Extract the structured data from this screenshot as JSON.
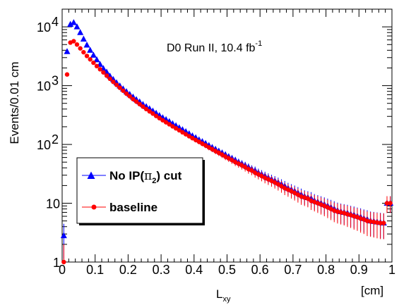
{
  "chart_data": {
    "type": "scatter",
    "title": "",
    "annotation": {
      "main": "D0 Run II, 10.4 fb",
      "sup": "-1"
    },
    "xlabel": {
      "main": "L",
      "sub": "xy"
    },
    "xunit": "[cm]",
    "ylabel": "Events/0.01 cm",
    "xlim": [
      0,
      1
    ],
    "ylim": [
      1,
      20000
    ],
    "yscale": "log",
    "grid": false,
    "legend_position": "left-middle",
    "x_ticks": [
      "0",
      "0.1",
      "0.2",
      "0.3",
      "0.4",
      "0.5",
      "0.6",
      "0.7",
      "0.8",
      "0.9",
      "1"
    ],
    "y_ticks": [
      {
        "value": 1,
        "main": "1",
        "sup": ""
      },
      {
        "value": 10,
        "main": "10",
        "sup": ""
      },
      {
        "value": 100,
        "main": "10",
        "sup": "2"
      },
      {
        "value": 1000,
        "main": "10",
        "sup": "3"
      },
      {
        "value": 10000,
        "main": "10",
        "sup": "4"
      }
    ],
    "series": [
      {
        "name": {
          "pre": "No IP(",
          "sym": "π",
          "sub": "2",
          "post": ") cut"
        },
        "color": "#0000ff",
        "marker": "triangle",
        "x": [
          0.005,
          0.015,
          0.025,
          0.035,
          0.045,
          0.055,
          0.065,
          0.075,
          0.085,
          0.095,
          0.105,
          0.115,
          0.125,
          0.135,
          0.145,
          0.155,
          0.165,
          0.175,
          0.185,
          0.195,
          0.205,
          0.215,
          0.225,
          0.235,
          0.245,
          0.255,
          0.265,
          0.275,
          0.285,
          0.295,
          0.305,
          0.315,
          0.325,
          0.335,
          0.345,
          0.355,
          0.365,
          0.375,
          0.385,
          0.395,
          0.405,
          0.415,
          0.425,
          0.435,
          0.445,
          0.455,
          0.465,
          0.475,
          0.485,
          0.495,
          0.505,
          0.515,
          0.525,
          0.535,
          0.545,
          0.555,
          0.565,
          0.575,
          0.585,
          0.595,
          0.605,
          0.615,
          0.625,
          0.635,
          0.645,
          0.655,
          0.665,
          0.675,
          0.685,
          0.695,
          0.705,
          0.715,
          0.725,
          0.735,
          0.745,
          0.755,
          0.765,
          0.775,
          0.785,
          0.795,
          0.805,
          0.815,
          0.825,
          0.835,
          0.845,
          0.855,
          0.865,
          0.875,
          0.885,
          0.895,
          0.905,
          0.915,
          0.925,
          0.935,
          0.945,
          0.955,
          0.965,
          0.975,
          0.985,
          0.995
        ],
        "y": [
          2.8,
          3800,
          11000,
          11800,
          10000,
          8000,
          6200,
          4900,
          4000,
          3300,
          2750,
          2300,
          1950,
          1700,
          1450,
          1270,
          1120,
          990,
          880,
          790,
          710,
          640,
          580,
          530,
          480,
          440,
          405,
          370,
          340,
          310,
          285,
          265,
          245,
          225,
          208,
          192,
          178,
          165,
          152,
          140,
          130,
          120,
          112,
          104,
          96,
          89,
          83,
          77,
          72,
          67,
          62,
          58,
          54,
          50,
          47,
          44,
          41,
          38,
          36,
          33,
          31,
          29,
          27,
          25.5,
          24,
          22.5,
          21,
          19.5,
          18,
          17,
          16,
          15,
          14,
          13,
          12.5,
          12,
          11,
          10.5,
          10,
          9.5,
          9,
          8.5,
          8,
          7.5,
          7.2,
          7,
          6.8,
          6.5,
          6.3,
          6,
          5.8,
          5.5,
          5.3,
          5,
          4.9,
          4.8,
          4.7,
          4.6,
          10,
          10
        ]
      },
      {
        "name": {
          "pre": "baseline",
          "sym": "",
          "sub": "",
          "post": ""
        },
        "color": "#ff0000",
        "marker": "circle",
        "x": [
          0.005,
          0.015,
          0.025,
          0.035,
          0.045,
          0.055,
          0.065,
          0.075,
          0.085,
          0.095,
          0.105,
          0.115,
          0.125,
          0.135,
          0.145,
          0.155,
          0.165,
          0.175,
          0.185,
          0.195,
          0.205,
          0.215,
          0.225,
          0.235,
          0.245,
          0.255,
          0.265,
          0.275,
          0.285,
          0.295,
          0.305,
          0.315,
          0.325,
          0.335,
          0.345,
          0.355,
          0.365,
          0.375,
          0.385,
          0.395,
          0.405,
          0.415,
          0.425,
          0.435,
          0.445,
          0.455,
          0.465,
          0.475,
          0.485,
          0.495,
          0.505,
          0.515,
          0.525,
          0.535,
          0.545,
          0.555,
          0.565,
          0.575,
          0.585,
          0.595,
          0.605,
          0.615,
          0.625,
          0.635,
          0.645,
          0.655,
          0.665,
          0.675,
          0.685,
          0.695,
          0.705,
          0.715,
          0.725,
          0.735,
          0.745,
          0.755,
          0.765,
          0.775,
          0.785,
          0.795,
          0.805,
          0.815,
          0.825,
          0.835,
          0.845,
          0.855,
          0.865,
          0.875,
          0.885,
          0.895,
          0.905,
          0.915,
          0.925,
          0.935,
          0.945,
          0.955,
          0.965,
          0.975,
          0.985,
          0.995
        ],
        "y": [
          1,
          1550,
          5400,
          5700,
          5000,
          4300,
          3700,
          3200,
          2800,
          2450,
          2150,
          1900,
          1680,
          1480,
          1310,
          1160,
          1030,
          920,
          820,
          730,
          660,
          590,
          535,
          485,
          440,
          400,
          365,
          335,
          305,
          280,
          258,
          238,
          220,
          203,
          188,
          174,
          161,
          149,
          138,
          128,
          119,
          111,
          103,
          96,
          89,
          83,
          77,
          72,
          67,
          62,
          58,
          54,
          50,
          47,
          44,
          41,
          38,
          36,
          33,
          31,
          29,
          27,
          25.5,
          24,
          22.5,
          21,
          19.5,
          18,
          17,
          16,
          15,
          14,
          13,
          12.5,
          12,
          11,
          10.5,
          10,
          9.5,
          9,
          8.5,
          8,
          7.5,
          7.2,
          7,
          6.8,
          6.5,
          6.3,
          6,
          5.8,
          5.5,
          5.3,
          5,
          4.9,
          4.8,
          4.7,
          4.6,
          4.6,
          10,
          10
        ]
      }
    ]
  }
}
